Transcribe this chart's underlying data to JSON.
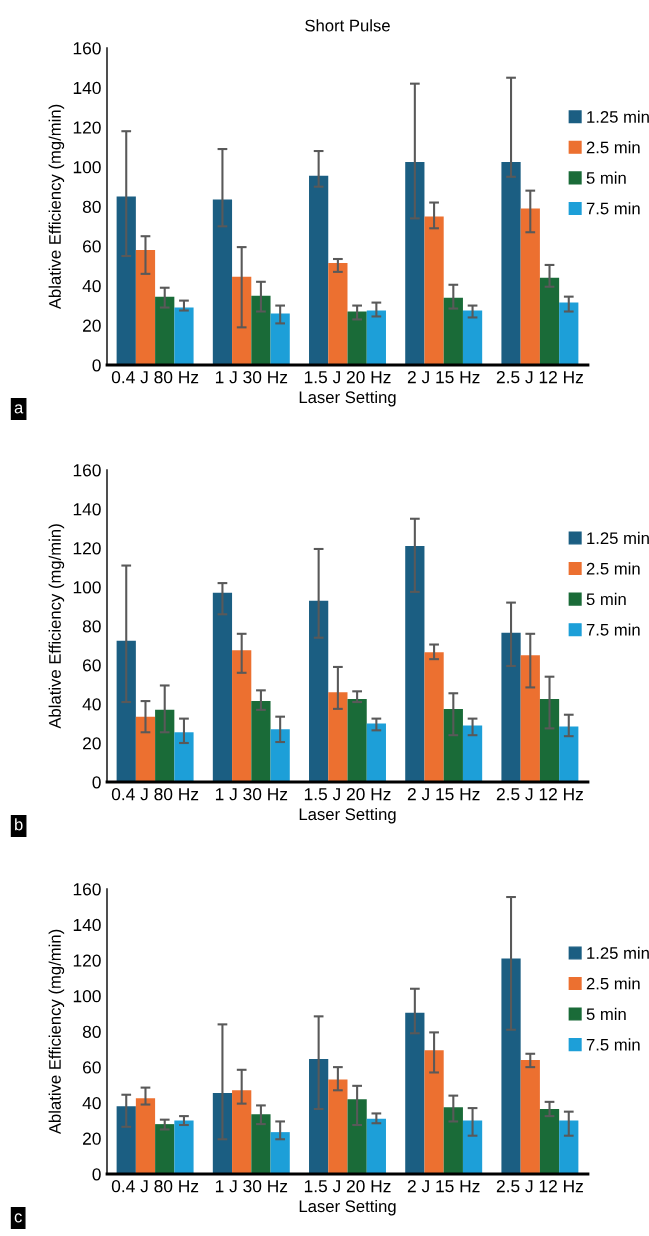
{
  "chart_data": [
    {
      "type": "bar",
      "title": "Short Pulse",
      "xlabel": "Laser Setting",
      "ylabel": "Ablative Efficiency (mg/min)",
      "annotations": [
        "a"
      ],
      "legend": "right",
      "grid": false,
      "ylim": [
        0,
        160
      ],
      "yticks": [
        0,
        20,
        40,
        60,
        80,
        100,
        120,
        140,
        160
      ],
      "categories": [
        "0.4 J 80 Hz",
        "1 J 30 Hz",
        "1.5 J 20 Hz",
        "2 J 15 Hz",
        "2.5 J 12 Hz"
      ],
      "series": [
        {
          "name": "1.25 min",
          "color": "#1b5e82",
          "values": [
            85,
            83.5,
            95.5,
            102.5,
            102.5
          ],
          "errors": [
            [
              55,
              118
            ],
            [
              70,
              109
            ],
            [
              90,
              108
            ],
            [
              74,
              142
            ],
            [
              95,
              145
            ]
          ]
        },
        {
          "name": "2.5 min",
          "color": "#ec7030",
          "values": [
            58,
            44.5,
            51.5,
            75,
            79
          ],
          "errors": [
            [
              46,
              65
            ],
            [
              19,
              59.5
            ],
            [
              47,
              53.5
            ],
            [
              69,
              82
            ],
            [
              67,
              88
            ]
          ]
        },
        {
          "name": "5 min",
          "color": "#1a6b38",
          "values": [
            34.5,
            35,
            27,
            34,
            44
          ],
          "errors": [
            [
              29,
              39
            ],
            [
              27,
              42
            ],
            [
              23,
              30
            ],
            [
              28.5,
              40.5
            ],
            [
              39.5,
              50.5
            ]
          ]
        },
        {
          "name": "7.5 min",
          "color": "#1d9fd8",
          "values": [
            29,
            26,
            27.5,
            27.5,
            31.5
          ],
          "errors": [
            [
              27.5,
              32.5
            ],
            [
              21,
              30
            ],
            [
              24.5,
              31.5
            ],
            [
              24,
              30
            ],
            [
              27,
              34.5
            ]
          ]
        }
      ]
    },
    {
      "type": "bar",
      "xlabel": "Laser Setting",
      "ylabel": "Ablative Efficiency (mg/min)",
      "annotations": [
        "b"
      ],
      "legend": "right",
      "grid": false,
      "ylim": [
        0,
        160
      ],
      "yticks": [
        0,
        20,
        40,
        60,
        80,
        100,
        120,
        140,
        160
      ],
      "categories": [
        "0.4 J 80 Hz",
        "1 J 30 Hz",
        "1.5 J 20 Hz",
        "2 J 15 Hz",
        "2.5 J 12 Hz"
      ],
      "series": [
        {
          "name": "1.25 min",
          "color": "#1b5e82",
          "values": [
            72.5,
            97,
            93,
            121,
            76.5
          ],
          "errors": [
            [
              41,
              111
            ],
            [
              86,
              102
            ],
            [
              74,
              119.5
            ],
            [
              97.5,
              135
            ],
            [
              59.5,
              92
            ]
          ]
        },
        {
          "name": "2.5 min",
          "color": "#ec7030",
          "values": [
            33.5,
            67.5,
            46,
            66.5,
            65
          ],
          "errors": [
            [
              25.5,
              41.5
            ],
            [
              56,
              76
            ],
            [
              37.5,
              59
            ],
            [
              63,
              70.5
            ],
            [
              48.5,
              76
            ]
          ]
        },
        {
          "name": "5 min",
          "color": "#1a6b38",
          "values": [
            37,
            41.5,
            42.5,
            37.5,
            42.5
          ],
          "errors": [
            [
              25.5,
              49.5
            ],
            [
              37,
              47
            ],
            [
              41,
              46.5
            ],
            [
              24,
              45.5
            ],
            [
              27.5,
              54
            ]
          ]
        },
        {
          "name": "7.5 min",
          "color": "#1d9fd8",
          "values": [
            25.5,
            27,
            30,
            29,
            28.5
          ],
          "errors": [
            [
              20,
              32.5
            ],
            [
              20.5,
              33.5
            ],
            [
              26.5,
              32.5
            ],
            [
              24,
              32.5
            ],
            [
              23.5,
              34.5
            ]
          ]
        }
      ]
    },
    {
      "type": "bar",
      "xlabel": "Laser Setting",
      "ylabel": "Ablative Efficiency (mg/min)",
      "annotations": [
        "c"
      ],
      "legend": "right",
      "grid": false,
      "ylim": [
        0,
        160
      ],
      "yticks": [
        0,
        20,
        40,
        60,
        80,
        100,
        120,
        140,
        160
      ],
      "categories": [
        "0.4 J 80 Hz",
        "1 J 30 Hz",
        "1.5 J 20 Hz",
        "2 J 15 Hz",
        "2.5 J 12 Hz"
      ],
      "series": [
        {
          "name": "1.25 min",
          "color": "#1b5e82",
          "values": [
            38,
            45.5,
            64.5,
            90.5,
            121
          ],
          "errors": [
            [
              26.5,
              44.5
            ],
            [
              19.5,
              84
            ],
            [
              36.5,
              88.5
            ],
            [
              79,
              104
            ],
            [
              81,
              155.5
            ]
          ]
        },
        {
          "name": "2.5 min",
          "color": "#ec7030",
          "values": [
            42.5,
            47,
            53,
            69.5,
            64
          ],
          "errors": [
            [
              39,
              48.5
            ],
            [
              39.5,
              58.5
            ],
            [
              47,
              60
            ],
            [
              57,
              79.5
            ],
            [
              60,
              67.5
            ]
          ]
        },
        {
          "name": "5 min",
          "color": "#1a6b38",
          "values": [
            28,
            33.5,
            42,
            37.5,
            36.5
          ],
          "errors": [
            [
              25,
              30.5
            ],
            [
              28,
              38.5
            ],
            [
              27.5,
              49.5
            ],
            [
              29.5,
              44
            ],
            [
              32.5,
              40.5
            ]
          ]
        },
        {
          "name": "7.5 min",
          "color": "#1d9fd8",
          "values": [
            30,
            23.5,
            31,
            30,
            30
          ],
          "errors": [
            [
              27.5,
              32.5
            ],
            [
              19.5,
              29.5
            ],
            [
              28.5,
              34
            ],
            [
              21.5,
              37
            ],
            [
              21.5,
              35
            ]
          ]
        }
      ]
    }
  ]
}
